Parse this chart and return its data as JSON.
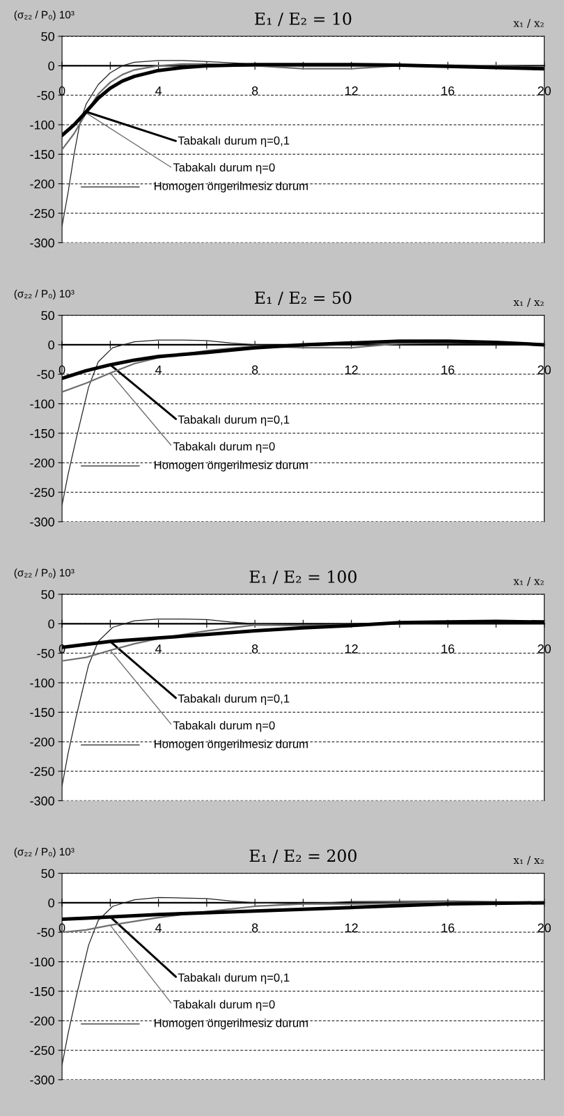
{
  "chart_data": [
    {
      "type": "line",
      "title": "E₁ / E₂ = 10",
      "xlabel": "x₁ / x₂",
      "ylabel": "(σ₂₂ / P₀) 10³",
      "xlim": [
        0,
        20
      ],
      "ylim": [
        -300,
        50
      ],
      "xticks": [
        0,
        {
          "value": 2,
          "label": null
        },
        4,
        {
          "value": 6,
          "label": null
        },
        8,
        {
          "value": 10,
          "label": null
        },
        12,
        {
          "value": 14,
          "label": null
        },
        16,
        {
          "value": 18,
          "label": null
        },
        20
      ],
      "yticks": [
        -300,
        -250,
        -200,
        -150,
        -100,
        -50,
        0,
        50
      ],
      "grid": "y",
      "series": [
        {
          "name": "Tabakalı durum η=0,1",
          "color": "#000000",
          "x": [
            0,
            0.5,
            1,
            1.5,
            2,
            2.5,
            3,
            4,
            5,
            6,
            8,
            10,
            12,
            14,
            16,
            18,
            20
          ],
          "values": [
            -118,
            -100,
            -78,
            -55,
            -38,
            -26,
            -18,
            -8,
            -3,
            0,
            2,
            2,
            2,
            1,
            -1,
            -3,
            -5
          ]
        },
        {
          "name": "Tabakalı durum η=0",
          "color": "#6e6e6e",
          "x": [
            0,
            0.5,
            1,
            1.5,
            2,
            2.5,
            3,
            4,
            5,
            6,
            8,
            10,
            12,
            14,
            16,
            18,
            20
          ],
          "values": [
            -142,
            -115,
            -80,
            -48,
            -28,
            -15,
            -7,
            0,
            3,
            3,
            0,
            -5,
            -5,
            0,
            1,
            0,
            -3
          ]
        },
        {
          "name": "Homogen öngerilmesiz durum",
          "color": "#222222",
          "x": [
            0,
            0.25,
            0.5,
            0.75,
            1,
            1.5,
            2,
            2.5,
            3,
            4,
            5,
            6,
            8,
            10,
            12,
            16,
            20
          ],
          "values": [
            -272,
            -215,
            -150,
            -95,
            -65,
            -32,
            -12,
            0,
            6,
            9,
            9,
            7,
            3,
            1,
            0,
            0,
            0
          ]
        }
      ]
    },
    {
      "type": "line",
      "title": "E₁ / E₂ = 50",
      "xlabel": "x₁ / x₂",
      "ylabel": "(σ₂₂ / P₀) 10³",
      "xlim": [
        0,
        20
      ],
      "ylim": [
        -300,
        50
      ],
      "xticks": [
        0,
        {
          "value": 2,
          "label": null
        },
        4,
        {
          "value": 6,
          "label": null
        },
        8,
        {
          "value": 10,
          "label": null
        },
        12,
        {
          "value": 14,
          "label": null
        },
        16,
        {
          "value": 18,
          "label": null
        },
        20
      ],
      "yticks": [
        -300,
        -250,
        -200,
        -150,
        -100,
        -50,
        0,
        50
      ],
      "grid": "y",
      "series": [
        {
          "name": "Tabakalı durum η=0,1",
          "color": "#000000",
          "x": [
            0,
            1,
            2,
            3,
            4,
            6,
            8,
            10,
            12,
            14,
            16,
            18,
            20
          ],
          "values": [
            -57,
            -44,
            -34,
            -26,
            -20,
            -13,
            -5,
            0,
            3,
            6,
            6,
            4,
            0
          ]
        },
        {
          "name": "Tabakalı durum η=0",
          "color": "#6e6e6e",
          "x": [
            0,
            1,
            2,
            3,
            4,
            6,
            8,
            10,
            12,
            14,
            16,
            18,
            20
          ],
          "values": [
            -80,
            -65,
            -48,
            -32,
            -22,
            -10,
            -2,
            -5,
            -5,
            2,
            4,
            3,
            0
          ]
        },
        {
          "name": "Homogen öngerilmesiz durum",
          "color": "#222222",
          "x": [
            0,
            0.25,
            0.6,
            1.1,
            1.5,
            2.1,
            3,
            4,
            5,
            6,
            7,
            8,
            10,
            12,
            16,
            20
          ],
          "values": [
            -272,
            -220,
            -157,
            -72,
            -29,
            -5,
            5,
            8,
            8,
            7,
            3,
            0,
            -2,
            0,
            2,
            0
          ]
        }
      ]
    },
    {
      "type": "line",
      "title": "E₁ / E₂ = 100",
      "xlabel": "x₁ / x₂",
      "ylabel": "(σ₂₂ / P₀) 10³",
      "xlim": [
        0,
        20
      ],
      "ylim": [
        -300,
        50
      ],
      "xticks": [
        0,
        {
          "value": 2,
          "label": null
        },
        4,
        {
          "value": 6,
          "label": null
        },
        8,
        {
          "value": 10,
          "label": null
        },
        12,
        {
          "value": 14,
          "label": null
        },
        16,
        {
          "value": 18,
          "label": null
        },
        20
      ],
      "yticks": [
        -300,
        -250,
        -200,
        -150,
        -100,
        -50,
        0,
        50
      ],
      "grid": "y",
      "series": [
        {
          "name": "Tabakalı durum η=0,1",
          "color": "#000000",
          "x": [
            0,
            1,
            2,
            4,
            6,
            8,
            10,
            12,
            14,
            16,
            18,
            20
          ],
          "values": [
            -40,
            -35,
            -30,
            -24,
            -18,
            -12,
            -7,
            -3,
            2,
            3,
            4,
            3
          ]
        },
        {
          "name": "Tabakalı durum η=0",
          "color": "#6e6e6e",
          "x": [
            0,
            1,
            2,
            3,
            4,
            6,
            8,
            10,
            12,
            14,
            16,
            20
          ],
          "values": [
            -63,
            -57,
            -45,
            -34,
            -25,
            -12,
            -2,
            -3,
            -2,
            0,
            2,
            3
          ]
        },
        {
          "name": "Homogen öngerilmesiz durum",
          "color": "#222222",
          "x": [
            0,
            0.25,
            0.6,
            1.1,
            1.5,
            2.1,
            3,
            4,
            5,
            6,
            7,
            8,
            10,
            12,
            16,
            20
          ],
          "values": [
            -275,
            -220,
            -155,
            -70,
            -30,
            -6,
            5,
            8,
            8,
            7,
            3,
            0,
            -2,
            0,
            2,
            1
          ]
        }
      ]
    },
    {
      "type": "line",
      "title": "E₁ / E₂ = 200",
      "xlabel": "x₁ / x₂",
      "ylabel": "(σ₂₂ / P₀) 10³",
      "xlim": [
        0,
        20
      ],
      "ylim": [
        -300,
        50
      ],
      "xticks": [
        0,
        {
          "value": 2,
          "label": null
        },
        4,
        {
          "value": 6,
          "label": null
        },
        8,
        {
          "value": 10,
          "label": null
        },
        12,
        {
          "value": 14,
          "label": null
        },
        16,
        {
          "value": 18,
          "label": null
        },
        20
      ],
      "yticks": [
        -300,
        -250,
        -200,
        -150,
        -100,
        -50,
        0,
        50
      ],
      "grid": "y",
      "series": [
        {
          "name": "Tabakalı durum η=0,1",
          "color": "#000000",
          "x": [
            0,
            1,
            2,
            4,
            8,
            12,
            16,
            20
          ],
          "values": [
            -28,
            -26,
            -24,
            -20,
            -14,
            -8,
            -2,
            0
          ]
        },
        {
          "name": "Tabakalı durum η=0",
          "color": "#6e6e6e",
          "x": [
            0,
            1,
            2,
            4,
            6,
            8,
            10,
            12,
            16,
            20
          ],
          "values": [
            -50,
            -46,
            -38,
            -25,
            -15,
            -6,
            -2,
            -2,
            0,
            0
          ]
        },
        {
          "name": "Homogen öngerilmesiz durum",
          "color": "#222222",
          "x": [
            0,
            0.25,
            0.6,
            1.1,
            1.5,
            2.1,
            3,
            4,
            5,
            6,
            7,
            8,
            10,
            12,
            16,
            20
          ],
          "values": [
            -275,
            -222,
            -157,
            -72,
            -30,
            -6,
            5,
            9,
            8,
            7,
            3,
            0,
            -2,
            2,
            3,
            1
          ]
        }
      ]
    }
  ]
}
